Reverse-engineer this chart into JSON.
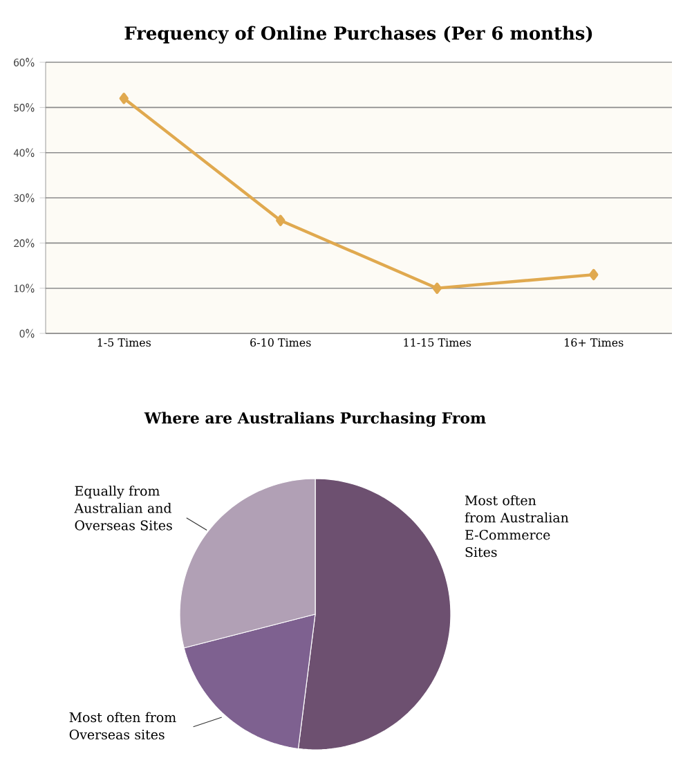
{
  "chart_data": [
    {
      "type": "line",
      "title": "Frequency of Online Purchases (Per 6 months)",
      "categories": [
        "1-5 Times",
        "6-10 Times",
        "11-15 Times",
        "16+ Times"
      ],
      "values": [
        52,
        25,
        10,
        13
      ],
      "color": "#e0a94f",
      "marker": "diamond",
      "line_style": "solid",
      "ylim": [
        0,
        60
      ],
      "yticks": [
        {
          "value": 0,
          "label": "0%"
        },
        {
          "value": 10,
          "label": "10%"
        },
        {
          "value": 20,
          "label": "20%"
        },
        {
          "value": 30,
          "label": "30%"
        },
        {
          "value": 40,
          "label": "40%"
        },
        {
          "value": 50,
          "label": "50%"
        },
        {
          "value": 60,
          "label": "60%"
        }
      ],
      "grid": "y"
    },
    {
      "type": "pie",
      "title": "Where are Australians Purchasing From",
      "categories": [
        "Most often from Australian E-Commerce Sites",
        "Most often from Overseas sites",
        "Equally from Australian and Overseas Sites"
      ],
      "values": [
        52,
        19,
        29
      ],
      "colors": [
        "#6d5070",
        "#7e6190",
        "#b1a0b5"
      ]
    }
  ]
}
